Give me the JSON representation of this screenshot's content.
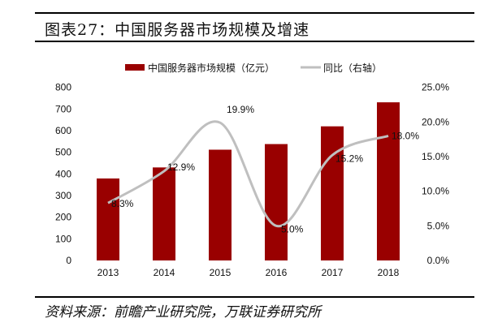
{
  "title": "图表27：中国服务器市场规模及增速",
  "source": "资料来源：前瞻产业研究院，万联证券研究所",
  "colors": {
    "bar": "#990000",
    "line": "#bfbfbf"
  },
  "chart_data": {
    "type": "bar+line",
    "categories": [
      "2013",
      "2014",
      "2015",
      "2016",
      "2017",
      "2018"
    ],
    "series": [
      {
        "name": "中国服务器市场规模（亿元）",
        "type": "bar",
        "axis": "left",
        "values": [
          379,
          430,
          512,
          538,
          620,
          731
        ]
      },
      {
        "name": "同比（右轴）",
        "type": "line",
        "axis": "right",
        "values": [
          8.3,
          12.9,
          19.9,
          5.0,
          15.2,
          18.0
        ],
        "labels": [
          "8.3%",
          "12.9%",
          "19.9%",
          "5.0%",
          "15.2%",
          "18.0%"
        ]
      }
    ],
    "y_left": {
      "range": [
        0,
        800
      ],
      "ticks": [
        "0",
        "100",
        "200",
        "300",
        "400",
        "500",
        "600",
        "700",
        "800"
      ]
    },
    "y_right": {
      "range": [
        0,
        25
      ],
      "ticks": [
        "0.0%",
        "5.0%",
        "10.0%",
        "15.0%",
        "20.0%",
        "25.0%"
      ]
    },
    "legend": "top",
    "grid": false
  }
}
